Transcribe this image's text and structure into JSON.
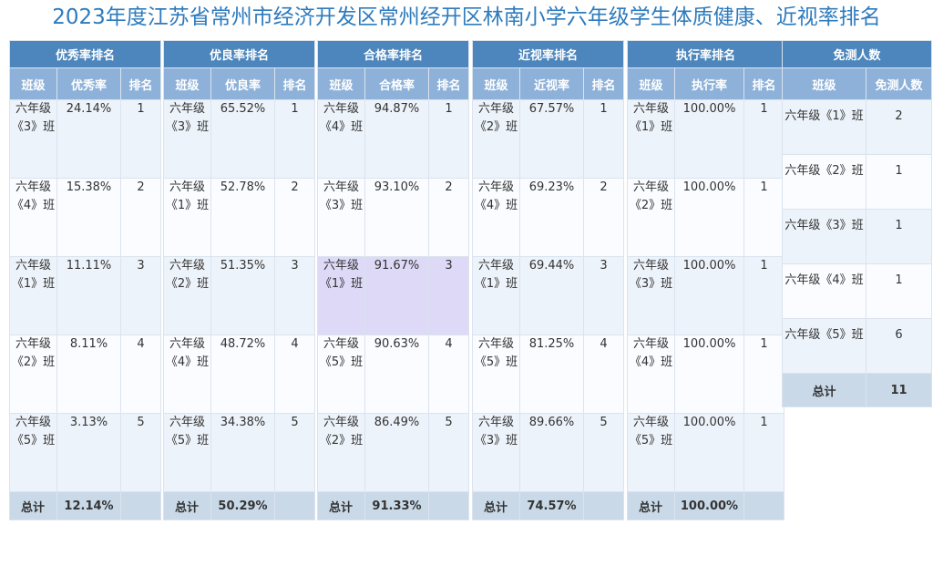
{
  "title": "2023年度江苏省常州市经济开发区常州经开区林南小学六年级学生体质健康、近视率排名",
  "col_class": "班级",
  "col_rank": "排名",
  "total_label": "总计",
  "panels": [
    {
      "title": "优秀率排名",
      "metric": "优秀率",
      "rows": [
        {
          "class": "六年级《3》班",
          "value": "24.14%",
          "rank": "1"
        },
        {
          "class": "六年级《4》班",
          "value": "15.38%",
          "rank": "2"
        },
        {
          "class": "六年级《1》班",
          "value": "11.11%",
          "rank": "3"
        },
        {
          "class": "六年级《2》班",
          "value": "8.11%",
          "rank": "4"
        },
        {
          "class": "六年级《5》班",
          "value": "3.13%",
          "rank": "5"
        }
      ],
      "total": "12.14%"
    },
    {
      "title": "优良率排名",
      "metric": "优良率",
      "rows": [
        {
          "class": "六年级《3》班",
          "value": "65.52%",
          "rank": "1"
        },
        {
          "class": "六年级《1》班",
          "value": "52.78%",
          "rank": "2"
        },
        {
          "class": "六年级《2》班",
          "value": "51.35%",
          "rank": "3"
        },
        {
          "class": "六年级《4》班",
          "value": "48.72%",
          "rank": "4"
        },
        {
          "class": "六年级《5》班",
          "value": "34.38%",
          "rank": "5"
        }
      ],
      "total": "50.29%"
    },
    {
      "title": "合格率排名",
      "metric": "合格率",
      "rows": [
        {
          "class": "六年级《4》班",
          "value": "94.87%",
          "rank": "1"
        },
        {
          "class": "六年级《3》班",
          "value": "93.10%",
          "rank": "2"
        },
        {
          "class": "六年级《1》班",
          "value": "91.67%",
          "rank": "3"
        },
        {
          "class": "六年级《5》班",
          "value": "90.63%",
          "rank": "4"
        },
        {
          "class": "六年级《2》班",
          "value": "86.49%",
          "rank": "5"
        }
      ],
      "total": "91.33%"
    },
    {
      "title": "近视率排名",
      "metric": "近视率",
      "rows": [
        {
          "class": "六年级《2》班",
          "value": "67.57%",
          "rank": "1"
        },
        {
          "class": "六年级《4》班",
          "value": "69.23%",
          "rank": "2"
        },
        {
          "class": "六年级《1》班",
          "value": "69.44%",
          "rank": "3"
        },
        {
          "class": "六年级《5》班",
          "value": "81.25%",
          "rank": "4"
        },
        {
          "class": "六年级《3》班",
          "value": "89.66%",
          "rank": "5"
        }
      ],
      "total": "74.57%"
    },
    {
      "title": "执行率排名",
      "metric": "执行率",
      "rows": [
        {
          "class": "六年级《1》班",
          "value": "100.00%",
          "rank": "1"
        },
        {
          "class": "六年级《2》班",
          "value": "100.00%",
          "rank": "1"
        },
        {
          "class": "六年级《3》班",
          "value": "100.00%",
          "rank": "1"
        },
        {
          "class": "六年级《4》班",
          "value": "100.00%",
          "rank": "1"
        },
        {
          "class": "六年级《5》班",
          "value": "100.00%",
          "rank": "1"
        }
      ],
      "total": "100.00%"
    }
  ],
  "exempt": {
    "title": "免测人数",
    "col_class": "班级",
    "col_count": "免测人数",
    "rows": [
      {
        "class": "六年级《1》班",
        "count": "2"
      },
      {
        "class": "六年级《2》班",
        "count": "1"
      },
      {
        "class": "六年级《3》班",
        "count": "1"
      },
      {
        "class": "六年级《4》班",
        "count": "1"
      },
      {
        "class": "六年级《5》班",
        "count": "6"
      }
    ],
    "total": "11"
  },
  "highlight_color": "#ddd9f7"
}
